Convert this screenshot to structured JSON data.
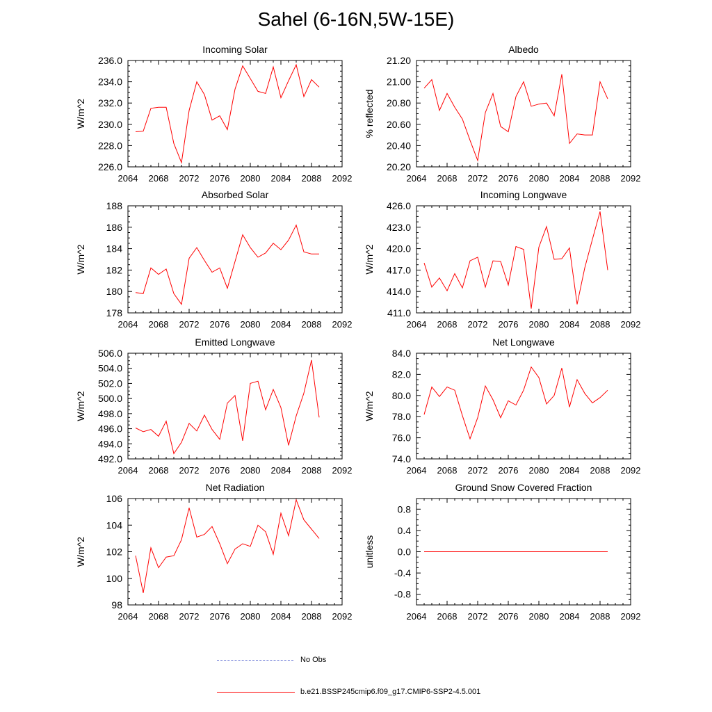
{
  "page": {
    "title": "Sahel (6-16N,5W-15E)"
  },
  "colors": {
    "series": "#ff0000",
    "obs": "#5a6ad2",
    "axis": "#000000"
  },
  "legend": [
    {
      "label": "No Obs",
      "style": "dashed",
      "color": "#5a6ad2"
    },
    {
      "label": "b.e21.BSSP245cmip6.f09_g17.CMIP6-SSP2-4.5.001",
      "style": "solid",
      "color": "#ff0000"
    }
  ],
  "chart_data": [
    {
      "type": "line",
      "title": "Incoming Solar",
      "ylabel": "W/m^2",
      "xlim": [
        2064,
        2092
      ],
      "xticks": [
        "2064",
        "2068",
        "2072",
        "2076",
        "2080",
        "2084",
        "2088",
        "2092"
      ],
      "ylim": [
        226,
        236
      ],
      "yticks": [
        "226.0",
        "228.0",
        "230.0",
        "232.0",
        "234.0",
        "236.0"
      ],
      "x": [
        2065,
        2066,
        2067,
        2068,
        2069,
        2070,
        2071,
        2072,
        2073,
        2074,
        2075,
        2076,
        2077,
        2078,
        2079,
        2080,
        2081,
        2082,
        2083,
        2084,
        2085,
        2086,
        2087,
        2088,
        2089
      ],
      "y": [
        229.3,
        229.35,
        231.5,
        231.6,
        231.6,
        228.2,
        226.4,
        231.3,
        234.0,
        232.8,
        230.4,
        230.8,
        229.5,
        233.3,
        235.5,
        234.3,
        233.1,
        232.9,
        235.4,
        232.5,
        234.1,
        235.6,
        232.6,
        234.2,
        233.5
      ]
    },
    {
      "type": "line",
      "title": "Albedo",
      "ylabel": "% reflected",
      "xlim": [
        2064,
        2092
      ],
      "xticks": [
        "2064",
        "2068",
        "2072",
        "2076",
        "2080",
        "2084",
        "2088",
        "2092"
      ],
      "ylim": [
        20.2,
        21.2
      ],
      "yticks": [
        "20.20",
        "20.40",
        "20.60",
        "20.80",
        "21.00",
        "21.20"
      ],
      "x": [
        2065,
        2066,
        2067,
        2068,
        2069,
        2070,
        2071,
        2072,
        2073,
        2074,
        2075,
        2076,
        2077,
        2078,
        2079,
        2080,
        2081,
        2082,
        2083,
        2084,
        2085,
        2086,
        2087,
        2088,
        2089
      ],
      "y": [
        20.94,
        21.02,
        20.73,
        20.89,
        20.76,
        20.65,
        20.45,
        20.26,
        20.71,
        20.89,
        20.58,
        20.53,
        20.86,
        21.0,
        20.77,
        20.79,
        20.8,
        20.68,
        21.07,
        20.42,
        20.51,
        20.5,
        20.5,
        21.0,
        20.84
      ]
    },
    {
      "type": "line",
      "title": "Absorbed Solar",
      "ylabel": "W/m^2",
      "xlim": [
        2064,
        2092
      ],
      "xticks": [
        "2064",
        "2068",
        "2072",
        "2076",
        "2080",
        "2084",
        "2088",
        "2092"
      ],
      "ylim": [
        178,
        188
      ],
      "yticks": [
        "178",
        "180",
        "182",
        "184",
        "186",
        "188"
      ],
      "x": [
        2065,
        2066,
        2067,
        2068,
        2069,
        2070,
        2071,
        2072,
        2073,
        2074,
        2075,
        2076,
        2077,
        2078,
        2079,
        2080,
        2081,
        2082,
        2083,
        2084,
        2085,
        2086,
        2087,
        2088,
        2089
      ],
      "y": [
        179.9,
        179.8,
        182.2,
        181.6,
        182.1,
        179.8,
        178.8,
        183.1,
        184.1,
        182.9,
        181.8,
        182.2,
        180.3,
        182.8,
        185.3,
        184.1,
        183.2,
        183.6,
        184.5,
        183.9,
        184.8,
        186.2,
        183.7,
        183.5,
        183.5
      ]
    },
    {
      "type": "line",
      "title": "Incoming Longwave",
      "ylabel": "W/m^2",
      "xlim": [
        2064,
        2092
      ],
      "xticks": [
        "2064",
        "2068",
        "2072",
        "2076",
        "2080",
        "2084",
        "2088",
        "2092"
      ],
      "ylim": [
        411,
        426
      ],
      "yticks": [
        "411.0",
        "414.0",
        "417.0",
        "420.0",
        "423.0",
        "426.0"
      ],
      "x": [
        2065,
        2066,
        2067,
        2068,
        2069,
        2070,
        2071,
        2072,
        2073,
        2074,
        2075,
        2076,
        2077,
        2078,
        2079,
        2080,
        2081,
        2082,
        2083,
        2084,
        2085,
        2086,
        2087,
        2088,
        2089
      ],
      "y": [
        418.0,
        414.6,
        415.9,
        414.1,
        416.5,
        414.5,
        418.3,
        418.8,
        414.6,
        418.3,
        418.2,
        414.9,
        420.3,
        419.9,
        411.6,
        420.2,
        423.1,
        418.5,
        418.6,
        420.1,
        412.2,
        417.3,
        421.3,
        425.2,
        417.0
      ]
    },
    {
      "type": "line",
      "title": "Emitted Longwave",
      "ylabel": "W/m^2",
      "xlim": [
        2064,
        2092
      ],
      "xticks": [
        "2064",
        "2068",
        "2072",
        "2076",
        "2080",
        "2084",
        "2088",
        "2092"
      ],
      "ylim": [
        492,
        506
      ],
      "yticks": [
        "492.0",
        "494.0",
        "496.0",
        "498.0",
        "500.0",
        "502.0",
        "504.0",
        "506.0"
      ],
      "x": [
        2065,
        2066,
        2067,
        2068,
        2069,
        2070,
        2071,
        2072,
        2073,
        2074,
        2075,
        2076,
        2077,
        2078,
        2079,
        2080,
        2081,
        2082,
        2083,
        2084,
        2085,
        2086,
        2087,
        2088,
        2089
      ],
      "y": [
        496.1,
        495.6,
        495.9,
        495.0,
        497.0,
        492.7,
        494.2,
        496.7,
        495.7,
        497.8,
        495.9,
        494.6,
        499.4,
        500.4,
        494.4,
        502.0,
        502.3,
        498.5,
        501.2,
        498.8,
        493.8,
        497.7,
        500.7,
        505.1,
        497.5
      ]
    },
    {
      "type": "line",
      "title": "Net Longwave",
      "ylabel": "W/m^2",
      "xlim": [
        2064,
        2092
      ],
      "xticks": [
        "2064",
        "2068",
        "2072",
        "2076",
        "2080",
        "2084",
        "2088",
        "2092"
      ],
      "ylim": [
        74,
        84
      ],
      "yticks": [
        "74.0",
        "76.0",
        "78.0",
        "80.0",
        "82.0",
        "84.0"
      ],
      "x": [
        2065,
        2066,
        2067,
        2068,
        2069,
        2070,
        2071,
        2072,
        2073,
        2074,
        2075,
        2076,
        2077,
        2078,
        2079,
        2080,
        2081,
        2082,
        2083,
        2084,
        2085,
        2086,
        2087,
        2088,
        2089
      ],
      "y": [
        78.2,
        80.8,
        79.9,
        80.8,
        80.5,
        78.1,
        75.9,
        77.9,
        80.9,
        79.6,
        77.9,
        79.5,
        79.1,
        80.5,
        82.7,
        81.7,
        79.2,
        80.0,
        82.6,
        78.9,
        81.5,
        80.2,
        79.3,
        79.8,
        80.5
      ]
    },
    {
      "type": "line",
      "title": "Net Radiation",
      "ylabel": "W/m^2",
      "xlim": [
        2064,
        2092
      ],
      "xticks": [
        "2064",
        "2068",
        "2072",
        "2076",
        "2080",
        "2084",
        "2088",
        "2092"
      ],
      "ylim": [
        98,
        106
      ],
      "yticks": [
        "98",
        "100",
        "102",
        "104",
        "106"
      ],
      "x": [
        2065,
        2066,
        2067,
        2068,
        2069,
        2070,
        2071,
        2072,
        2073,
        2074,
        2075,
        2076,
        2077,
        2078,
        2079,
        2080,
        2081,
        2082,
        2083,
        2084,
        2085,
        2086,
        2087,
        2088,
        2089
      ],
      "y": [
        101.7,
        98.9,
        102.3,
        100.8,
        101.6,
        101.7,
        102.9,
        105.3,
        103.1,
        103.3,
        103.9,
        102.6,
        101.1,
        102.2,
        102.6,
        102.4,
        104.0,
        103.5,
        101.8,
        104.9,
        103.2,
        105.9,
        104.4,
        103.7,
        103.0
      ]
    },
    {
      "type": "line",
      "title": "Ground Snow Covered Fraction",
      "ylabel": "unitless",
      "xlim": [
        2064,
        2092
      ],
      "xticks": [
        "2064",
        "2068",
        "2072",
        "2076",
        "2080",
        "2084",
        "2088",
        "2092"
      ],
      "ylim": [
        -1.0,
        1.0
      ],
      "yticks": [
        "-0.8",
        "-0.4",
        "0.0",
        "0.4",
        "0.8"
      ],
      "ytick_values": [
        -0.8,
        -0.4,
        0.0,
        0.4,
        0.8
      ],
      "x": [
        2065,
        2066,
        2067,
        2068,
        2069,
        2070,
        2071,
        2072,
        2073,
        2074,
        2075,
        2076,
        2077,
        2078,
        2079,
        2080,
        2081,
        2082,
        2083,
        2084,
        2085,
        2086,
        2087,
        2088,
        2089
      ],
      "y": [
        0,
        0,
        0,
        0,
        0,
        0,
        0,
        0,
        0,
        0,
        0,
        0,
        0,
        0,
        0,
        0,
        0,
        0,
        0,
        0,
        0,
        0,
        0,
        0,
        0
      ]
    }
  ]
}
